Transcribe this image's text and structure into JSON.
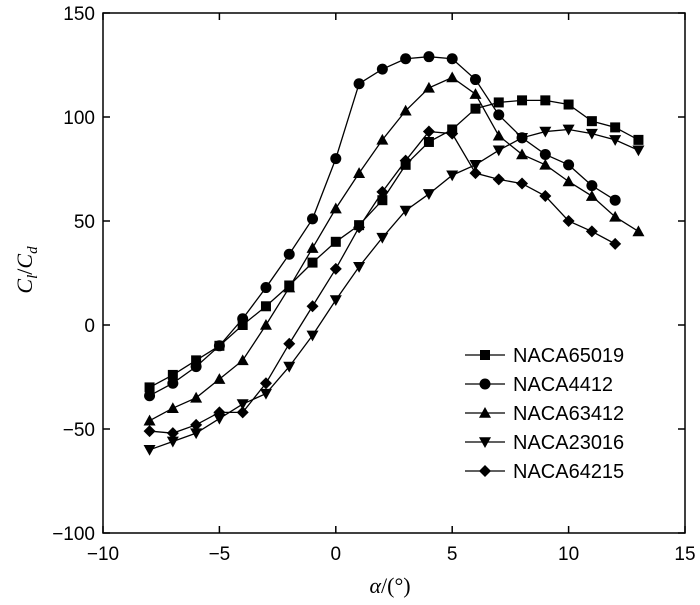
{
  "chart_data": {
    "type": "line",
    "xlim": [
      -10,
      15
    ],
    "ylim": [
      -100,
      150
    ],
    "xticks": [
      -10,
      -5,
      0,
      5,
      10,
      15
    ],
    "yticks": [
      -100,
      -50,
      0,
      50,
      100,
      150
    ],
    "xtick_labels": [
      "−10",
      "−5",
      "0",
      "5",
      "10",
      "15"
    ],
    "ytick_labels": [
      "−100",
      "−50",
      "0",
      "50",
      "100",
      "150"
    ],
    "xlabel": {
      "main": "α",
      "unit": "/(°)"
    },
    "ylabel": {
      "num": "C",
      "num_sub": "l",
      "sep": "/",
      "den": "C",
      "den_sub": "d"
    },
    "grid": false,
    "legend_position": "bottom-right",
    "series": [
      {
        "name": "NACA65019",
        "marker": "square",
        "x": [
          -8,
          -7,
          -6,
          -5,
          -4,
          -3,
          -2,
          -1,
          0,
          1,
          2,
          3,
          4,
          5,
          6,
          7,
          8,
          9,
          10,
          11,
          12,
          13
        ],
        "y": [
          -30,
          -24,
          -17,
          -10,
          0,
          9,
          19,
          30,
          40,
          48,
          60,
          77,
          88,
          94,
          104,
          107,
          108,
          108,
          106,
          98,
          95,
          89
        ]
      },
      {
        "name": "NACA4412",
        "marker": "circle",
        "x": [
          -8,
          -7,
          -6,
          -5,
          -4,
          -3,
          -2,
          -1,
          0,
          1,
          2,
          3,
          4,
          5,
          6,
          7,
          8,
          9,
          10,
          11,
          12
        ],
        "y": [
          -34,
          -28,
          -20,
          -10,
          3,
          18,
          34,
          51,
          80,
          116,
          123,
          128,
          129,
          128,
          118,
          101,
          90,
          82,
          77,
          67,
          60
        ]
      },
      {
        "name": "NACA63412",
        "marker": "triangle-up",
        "x": [
          -8,
          -7,
          -6,
          -5,
          -4,
          -3,
          -2,
          -1,
          0,
          1,
          2,
          3,
          4,
          5,
          6,
          7,
          8,
          9,
          10,
          11,
          12,
          13
        ],
        "y": [
          -46,
          -40,
          -35,
          -26,
          -17,
          0,
          18,
          37,
          56,
          73,
          89,
          103,
          114,
          119,
          111,
          91,
          82,
          77,
          69,
          62,
          52,
          45
        ]
      },
      {
        "name": "NACA23016",
        "marker": "triangle-down",
        "x": [
          -8,
          -7,
          -6,
          -5,
          -4,
          -3,
          -2,
          -1,
          0,
          1,
          2,
          3,
          4,
          5,
          6,
          7,
          8,
          9,
          10,
          11,
          12,
          13
        ],
        "y": [
          -60,
          -56,
          -52,
          -45,
          -38,
          -33,
          -20,
          -5,
          12,
          28,
          42,
          55,
          63,
          72,
          77,
          84,
          90,
          93,
          94,
          92,
          89,
          84
        ]
      },
      {
        "name": "NACA64215",
        "marker": "diamond",
        "x": [
          -8,
          -7,
          -6,
          -5,
          -4,
          -3,
          -2,
          -1,
          0,
          1,
          2,
          3,
          4,
          5,
          6,
          7,
          8,
          9,
          10,
          11,
          12
        ],
        "y": [
          -51,
          -52,
          -48,
          -42,
          -42,
          -28,
          -9,
          9,
          27,
          47,
          64,
          79,
          93,
          92,
          73,
          70,
          68,
          62,
          50,
          45,
          39
        ]
      }
    ]
  }
}
